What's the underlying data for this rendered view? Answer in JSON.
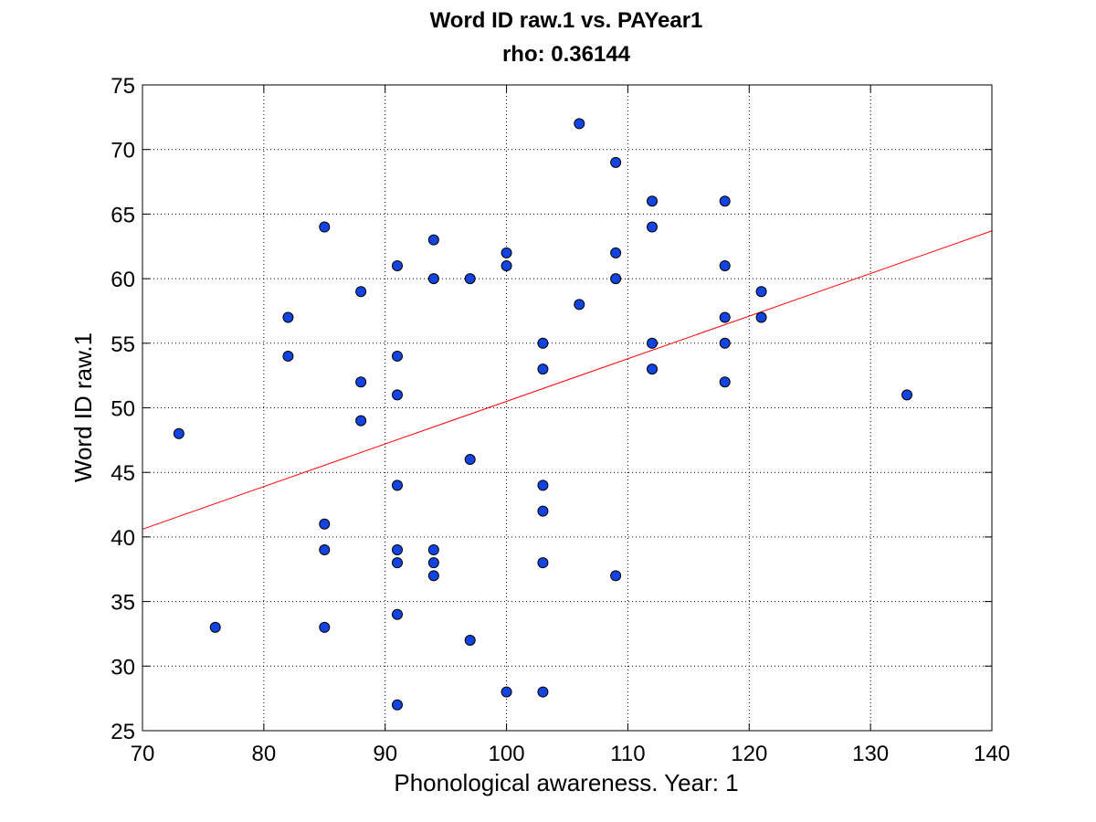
{
  "chart_data": {
    "type": "scatter",
    "title": "Word ID raw.1 vs. PAYear1",
    "subtitle": "rho: 0.36144",
    "xlabel": "Phonological awareness. Year: 1",
    "ylabel": "Word ID raw.1",
    "xlim": [
      70,
      140
    ],
    "ylim": [
      25,
      75
    ],
    "xticks": [
      "70",
      "80",
      "90",
      "100",
      "110",
      "120",
      "130",
      "140"
    ],
    "yticks": [
      "25",
      "30",
      "35",
      "40",
      "45",
      "50",
      "55",
      "60",
      "65",
      "70",
      "75"
    ],
    "grid": true,
    "points": [
      {
        "x": 73,
        "y": 48
      },
      {
        "x": 76,
        "y": 33
      },
      {
        "x": 82,
        "y": 57
      },
      {
        "x": 82,
        "y": 54
      },
      {
        "x": 85,
        "y": 64
      },
      {
        "x": 85,
        "y": 41
      },
      {
        "x": 85,
        "y": 39
      },
      {
        "x": 85,
        "y": 33
      },
      {
        "x": 88,
        "y": 59
      },
      {
        "x": 88,
        "y": 52
      },
      {
        "x": 88,
        "y": 49
      },
      {
        "x": 91,
        "y": 61
      },
      {
        "x": 91,
        "y": 54
      },
      {
        "x": 91,
        "y": 51
      },
      {
        "x": 91,
        "y": 44
      },
      {
        "x": 91,
        "y": 39
      },
      {
        "x": 91,
        "y": 38
      },
      {
        "x": 91,
        "y": 34
      },
      {
        "x": 91,
        "y": 27
      },
      {
        "x": 94,
        "y": 63
      },
      {
        "x": 94,
        "y": 60
      },
      {
        "x": 94,
        "y": 39
      },
      {
        "x": 94,
        "y": 38
      },
      {
        "x": 94,
        "y": 37
      },
      {
        "x": 97,
        "y": 60
      },
      {
        "x": 97,
        "y": 46
      },
      {
        "x": 97,
        "y": 32
      },
      {
        "x": 100,
        "y": 62
      },
      {
        "x": 100,
        "y": 61
      },
      {
        "x": 100,
        "y": 28
      },
      {
        "x": 103,
        "y": 55
      },
      {
        "x": 103,
        "y": 53
      },
      {
        "x": 103,
        "y": 44
      },
      {
        "x": 103,
        "y": 42
      },
      {
        "x": 103,
        "y": 38
      },
      {
        "x": 103,
        "y": 28
      },
      {
        "x": 106,
        "y": 72
      },
      {
        "x": 106,
        "y": 58
      },
      {
        "x": 109,
        "y": 69
      },
      {
        "x": 109,
        "y": 62
      },
      {
        "x": 109,
        "y": 60
      },
      {
        "x": 109,
        "y": 37
      },
      {
        "x": 112,
        "y": 66
      },
      {
        "x": 112,
        "y": 64
      },
      {
        "x": 112,
        "y": 55
      },
      {
        "x": 112,
        "y": 53
      },
      {
        "x": 118,
        "y": 66
      },
      {
        "x": 118,
        "y": 61
      },
      {
        "x": 118,
        "y": 57
      },
      {
        "x": 118,
        "y": 55
      },
      {
        "x": 118,
        "y": 52
      },
      {
        "x": 121,
        "y": 59
      },
      {
        "x": 121,
        "y": 57
      },
      {
        "x": 133,
        "y": 51
      }
    ],
    "fit_line": {
      "x": [
        70,
        140
      ],
      "y": [
        40.6,
        63.7
      ]
    },
    "colors": {
      "marker_fill": "#1144e0",
      "marker_edge": "#000000",
      "fit_line": "#ff0000",
      "grid": "#000000"
    }
  }
}
